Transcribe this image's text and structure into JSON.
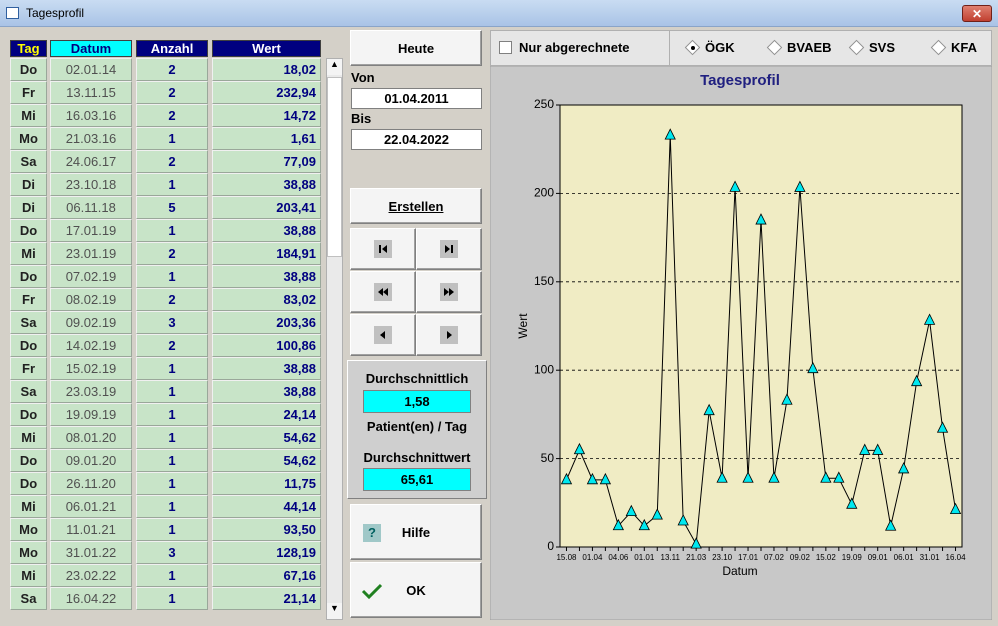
{
  "window": {
    "title": "Tagesprofil"
  },
  "table": {
    "headers": [
      "Tag",
      "Datum",
      "Anzahl",
      "Wert"
    ],
    "rows": [
      [
        "Do",
        "02.01.14",
        "2",
        "18,02"
      ],
      [
        "Fr",
        "13.11.15",
        "2",
        "232,94"
      ],
      [
        "Mi",
        "16.03.16",
        "2",
        "14,72"
      ],
      [
        "Mo",
        "21.03.16",
        "1",
        "1,61"
      ],
      [
        "Sa",
        "24.06.17",
        "2",
        "77,09"
      ],
      [
        "Di",
        "23.10.18",
        "1",
        "38,88"
      ],
      [
        "Di",
        "06.11.18",
        "5",
        "203,41"
      ],
      [
        "Do",
        "17.01.19",
        "1",
        "38,88"
      ],
      [
        "Mi",
        "23.01.19",
        "2",
        "184,91"
      ],
      [
        "Do",
        "07.02.19",
        "1",
        "38,88"
      ],
      [
        "Fr",
        "08.02.19",
        "2",
        "83,02"
      ],
      [
        "Sa",
        "09.02.19",
        "3",
        "203,36"
      ],
      [
        "Do",
        "14.02.19",
        "2",
        "100,86"
      ],
      [
        "Fr",
        "15.02.19",
        "1",
        "38,88"
      ],
      [
        "Sa",
        "23.03.19",
        "1",
        "38,88"
      ],
      [
        "Do",
        "19.09.19",
        "1",
        "24,14"
      ],
      [
        "Mi",
        "08.01.20",
        "1",
        "54,62"
      ],
      [
        "Do",
        "09.01.20",
        "1",
        "54,62"
      ],
      [
        "Do",
        "26.11.20",
        "1",
        "11,75"
      ],
      [
        "Mi",
        "06.01.21",
        "1",
        "44,14"
      ],
      [
        "Mo",
        "11.01.21",
        "1",
        "93,50"
      ],
      [
        "Mo",
        "31.01.22",
        "3",
        "128,19"
      ],
      [
        "Mi",
        "23.02.22",
        "1",
        "67,16"
      ],
      [
        "Sa",
        "16.04.22",
        "1",
        "21,14"
      ]
    ]
  },
  "controls": {
    "today": "Heute",
    "from_label": "Von",
    "from": "01.04.2011",
    "to_label": "Bis",
    "to": "22.04.2022",
    "create": "Erstellen",
    "help": "Hilfe",
    "ok": "OK"
  },
  "stats": {
    "avg_patients_label": "Durchschnittlich",
    "avg_patients": "1,58",
    "avg_patients_unit": "Patient(en) / Tag",
    "avg_value_label": "Durchschnittwert",
    "avg_value": "65,61"
  },
  "filters": {
    "checkbox": "Nur abgerechnete",
    "radios": [
      "ÖGK",
      "BVAEB",
      "SVS",
      "KFA"
    ],
    "selected": 0
  },
  "chart_data": {
    "type": "line",
    "title": "Tagesprofil",
    "x_label": "Datum",
    "y_label": "Wert",
    "categories": [
      "15.08",
      null,
      "01.04",
      null,
      "04.06",
      null,
      "01.01",
      null,
      "13.11",
      null,
      "21.03",
      null,
      "23.10",
      null,
      "17.01",
      null,
      "07.02",
      null,
      "09.02",
      null,
      "15.02",
      null,
      "19.09",
      null,
      "09.01",
      null,
      "06.01",
      null,
      "31.01",
      null,
      "16.04"
    ],
    "values": [
      38,
      55,
      38,
      38,
      12,
      20,
      12,
      18.02,
      232.94,
      14.72,
      1.61,
      77.09,
      38.88,
      203.41,
      38.88,
      184.91,
      38.88,
      83.02,
      203.36,
      100.86,
      38.88,
      38.88,
      24.14,
      54.62,
      54.62,
      11.75,
      44.14,
      93.5,
      128.19,
      67.16,
      21.14
    ],
    "color": "#00e8f0",
    "line_color": "#000000",
    "ylim": [
      0,
      250
    ],
    "yticks": [
      0,
      50,
      100,
      150,
      200,
      250
    ],
    "grid": true
  }
}
